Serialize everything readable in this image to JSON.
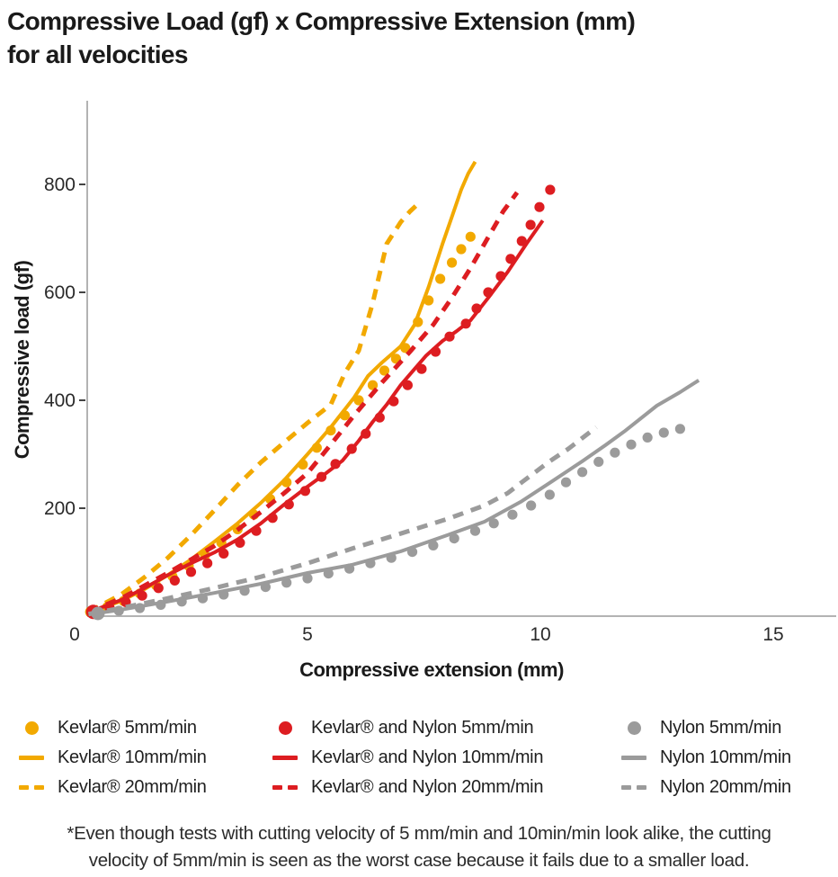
{
  "title": {
    "line1": "Compressive Load (gf) x Compressive Extension (mm)",
    "line2": "for all velocities"
  },
  "chart_data": {
    "type": "line",
    "title": "Compressive Load (gf) x Compressive Extension (mm) for all velocities",
    "xlabel": "Compressive extension (mm)",
    "ylabel": "Compressive load (gf)",
    "xlim": [
      0,
      16.3
    ],
    "ylim": [
      0,
      950
    ],
    "x_ticks": [
      0,
      5,
      10,
      15
    ],
    "y_ticks": [
      200,
      400,
      600,
      800
    ],
    "grid": false,
    "legend_position": "bottom",
    "axis_color": "#b3b3b3",
    "tick_text_color": "#2a2a2a",
    "series": [
      {
        "name": "Kevlar® 20mm/min",
        "color": "#F2A900",
        "style": "dashed",
        "points": [
          [
            0.3,
            8
          ],
          [
            1,
            40
          ],
          [
            1.5,
            72
          ],
          [
            2,
            108
          ],
          [
            2.5,
            150
          ],
          [
            3,
            196
          ],
          [
            3.5,
            243
          ],
          [
            4,
            285
          ],
          [
            4.5,
            322
          ],
          [
            5,
            358
          ],
          [
            5.5,
            392
          ],
          [
            5.8,
            450
          ],
          [
            6.1,
            492
          ],
          [
            6.4,
            580
          ],
          [
            6.7,
            690
          ],
          [
            7,
            730
          ],
          [
            7.2,
            750
          ],
          [
            7.4,
            766
          ]
        ]
      },
      {
        "name": "Kevlar® 10mm/min",
        "color": "#F2A900",
        "style": "solid",
        "points": [
          [
            0.3,
            6
          ],
          [
            1,
            28
          ],
          [
            1.5,
            50
          ],
          [
            2,
            76
          ],
          [
            2.5,
            105
          ],
          [
            3,
            138
          ],
          [
            3.5,
            172
          ],
          [
            4,
            210
          ],
          [
            4.5,
            252
          ],
          [
            5,
            300
          ],
          [
            5.5,
            350
          ],
          [
            6,
            405
          ],
          [
            6.3,
            445
          ],
          [
            6.6,
            470
          ],
          [
            7,
            500
          ],
          [
            7.3,
            540
          ],
          [
            7.6,
            610
          ],
          [
            7.9,
            690
          ],
          [
            8.1,
            740
          ],
          [
            8.3,
            790
          ],
          [
            8.45,
            820
          ],
          [
            8.6,
            842
          ]
        ]
      },
      {
        "name": "Kevlar® 5mm/min",
        "color": "#F2A900",
        "style": "dots",
        "first_dot_radius": 6.5,
        "points": [
          [
            0.35,
            8
          ],
          [
            0.7,
            17
          ],
          [
            1.05,
            28
          ],
          [
            1.4,
            42
          ],
          [
            1.75,
            57
          ],
          [
            2.1,
            74
          ],
          [
            2.45,
            93
          ],
          [
            2.8,
            113
          ],
          [
            3.15,
            136
          ],
          [
            3.5,
            161
          ],
          [
            3.85,
            188
          ],
          [
            4.2,
            217
          ],
          [
            4.55,
            248
          ],
          [
            4.9,
            281
          ],
          [
            5.2,
            312
          ],
          [
            5.5,
            344
          ],
          [
            5.8,
            372
          ],
          [
            6.1,
            400
          ],
          [
            6.4,
            428
          ],
          [
            6.65,
            455
          ],
          [
            6.9,
            477
          ],
          [
            7.1,
            497
          ],
          [
            7.37,
            545
          ],
          [
            7.6,
            585
          ],
          [
            7.85,
            625
          ],
          [
            8.1,
            655
          ],
          [
            8.3,
            680
          ],
          [
            8.5,
            703
          ]
        ]
      },
      {
        "name": "Kevlar® and Nylon 20mm/min",
        "color": "#DD1D21",
        "style": "dashed",
        "points": [
          [
            0.3,
            8
          ],
          [
            1,
            33
          ],
          [
            2,
            80
          ],
          [
            2.5,
            105
          ],
          [
            3,
            130
          ],
          [
            3.5,
            160
          ],
          [
            4,
            193
          ],
          [
            4.5,
            228
          ],
          [
            5,
            265
          ],
          [
            5.5,
            318
          ],
          [
            6,
            372
          ],
          [
            6.6,
            433
          ],
          [
            7.2,
            490
          ],
          [
            7.7,
            540
          ],
          [
            8.1,
            590
          ],
          [
            8.5,
            645
          ],
          [
            8.9,
            705
          ],
          [
            9.2,
            750
          ],
          [
            9.5,
            785
          ]
        ]
      },
      {
        "name": "Kevlar® and Nylon 10mm/min",
        "color": "#DD1D21",
        "style": "solid",
        "points": [
          [
            0.3,
            7
          ],
          [
            1,
            30
          ],
          [
            1.5,
            52
          ],
          [
            2,
            76
          ],
          [
            2.5,
            98
          ],
          [
            3,
            118
          ],
          [
            3.5,
            142
          ],
          [
            4,
            172
          ],
          [
            4.5,
            207
          ],
          [
            5,
            240
          ],
          [
            5.4,
            265
          ],
          [
            5.75,
            288
          ],
          [
            6.1,
            325
          ],
          [
            6.4,
            360
          ],
          [
            6.7,
            392
          ],
          [
            7,
            428
          ],
          [
            7.3,
            458
          ],
          [
            7.55,
            483
          ],
          [
            7.9,
            510
          ],
          [
            8.2,
            528
          ],
          [
            8.5,
            548
          ],
          [
            8.9,
            592
          ],
          [
            9.3,
            638
          ],
          [
            9.7,
            690
          ],
          [
            10.05,
            733
          ]
        ]
      },
      {
        "name": "Kevlar® and Nylon 5mm/min",
        "color": "#DD1D21",
        "style": "dots",
        "first_dot_radius": 8,
        "points": [
          [
            0.4,
            8
          ],
          [
            0.75,
            16
          ],
          [
            1.1,
            26
          ],
          [
            1.45,
            38
          ],
          [
            1.8,
            52
          ],
          [
            2.15,
            66
          ],
          [
            2.5,
            82
          ],
          [
            2.85,
            98
          ],
          [
            3.2,
            116
          ],
          [
            3.55,
            136
          ],
          [
            3.9,
            158
          ],
          [
            4.25,
            182
          ],
          [
            4.6,
            207
          ],
          [
            4.95,
            232
          ],
          [
            5.3,
            258
          ],
          [
            5.6,
            282
          ],
          [
            5.95,
            310
          ],
          [
            6.25,
            338
          ],
          [
            6.55,
            368
          ],
          [
            6.85,
            398
          ],
          [
            7.15,
            428
          ],
          [
            7.45,
            458
          ],
          [
            7.75,
            490
          ],
          [
            8.05,
            518
          ],
          [
            8.4,
            542
          ],
          [
            8.63,
            570
          ],
          [
            8.88,
            600
          ],
          [
            9.15,
            630
          ],
          [
            9.36,
            662
          ],
          [
            9.6,
            695
          ],
          [
            9.79,
            725
          ],
          [
            9.98,
            758
          ],
          [
            10.21,
            790
          ]
        ]
      },
      {
        "name": "Nylon 20mm/min",
        "color": "#9B9B9B",
        "style": "dashed",
        "points": [
          [
            0.3,
            4
          ],
          [
            1,
            15
          ],
          [
            2,
            33
          ],
          [
            3,
            52
          ],
          [
            4,
            73
          ],
          [
            5,
            98
          ],
          [
            5.95,
            125
          ],
          [
            7,
            153
          ],
          [
            8,
            180
          ],
          [
            8.8,
            205
          ],
          [
            9.3,
            228
          ],
          [
            9.6,
            248
          ],
          [
            10.2,
            287
          ],
          [
            10.6,
            310
          ],
          [
            10.9,
            330
          ],
          [
            11.2,
            350
          ]
        ]
      },
      {
        "name": "Nylon 10mm/min",
        "color": "#9B9B9B",
        "style": "solid",
        "points": [
          [
            0.3,
            3
          ],
          [
            1,
            12
          ],
          [
            2,
            27
          ],
          [
            3,
            43
          ],
          [
            4,
            60
          ],
          [
            5,
            80
          ],
          [
            5.95,
            95
          ],
          [
            7,
            120
          ],
          [
            8,
            150
          ],
          [
            8.8,
            175
          ],
          [
            9.6,
            213
          ],
          [
            10.2,
            247
          ],
          [
            10.9,
            287
          ],
          [
            11.4,
            317
          ],
          [
            11.8,
            342
          ],
          [
            12.5,
            390
          ],
          [
            13,
            415
          ],
          [
            13.4,
            437
          ]
        ]
      },
      {
        "name": "Nylon 5mm/min",
        "color": "#9B9B9B",
        "style": "dots",
        "first_dot_radius": 7.5,
        "points": [
          [
            0.5,
            5
          ],
          [
            0.95,
            10
          ],
          [
            1.4,
            15
          ],
          [
            1.85,
            21
          ],
          [
            2.3,
            27
          ],
          [
            2.75,
            33
          ],
          [
            3.2,
            40
          ],
          [
            3.65,
            47
          ],
          [
            4.1,
            54
          ],
          [
            4.55,
            62
          ],
          [
            5,
            70
          ],
          [
            5.45,
            79
          ],
          [
            5.9,
            88
          ],
          [
            6.35,
            98
          ],
          [
            6.8,
            108
          ],
          [
            7.25,
            119
          ],
          [
            7.7,
            131
          ],
          [
            8.15,
            144
          ],
          [
            8.6,
            158
          ],
          [
            9,
            172
          ],
          [
            9.4,
            188
          ],
          [
            9.8,
            205
          ],
          [
            10.2,
            225
          ],
          [
            10.55,
            248
          ],
          [
            10.9,
            267
          ],
          [
            11.25,
            286
          ],
          [
            11.6,
            303
          ],
          [
            11.95,
            318
          ],
          [
            12.3,
            331
          ],
          [
            12.65,
            340
          ],
          [
            13,
            347
          ]
        ]
      }
    ]
  },
  "legend": {
    "columns": [
      {
        "color": "#F2A900",
        "items": [
          {
            "marker": "dot",
            "label": "Kevlar® 5mm/min"
          },
          {
            "marker": "solid",
            "label": "Kevlar® 10mm/min"
          },
          {
            "marker": "dashed",
            "label": "Kevlar® 20mm/min"
          }
        ]
      },
      {
        "color": "#DD1D21",
        "items": [
          {
            "marker": "dot",
            "label": "Kevlar® and Nylon 5mm/min"
          },
          {
            "marker": "solid",
            "label": "Kevlar® and Nylon 10mm/min"
          },
          {
            "marker": "dashed",
            "label": "Kevlar® and Nylon 20mm/min"
          }
        ]
      },
      {
        "color": "#9B9B9B",
        "items": [
          {
            "marker": "dot",
            "label": "Nylon 5mm/min"
          },
          {
            "marker": "solid",
            "label": "Nylon 10mm/min"
          },
          {
            "marker": "dashed",
            "label": "Nylon 20mm/min"
          }
        ]
      }
    ]
  },
  "footnote": {
    "line1": "*Even though tests with cutting velocity of 5 mm/min and 10min/min look alike, the cutting",
    "line2": "velocity of 5mm/min is seen as the worst case because it fails due to a smaller load."
  }
}
